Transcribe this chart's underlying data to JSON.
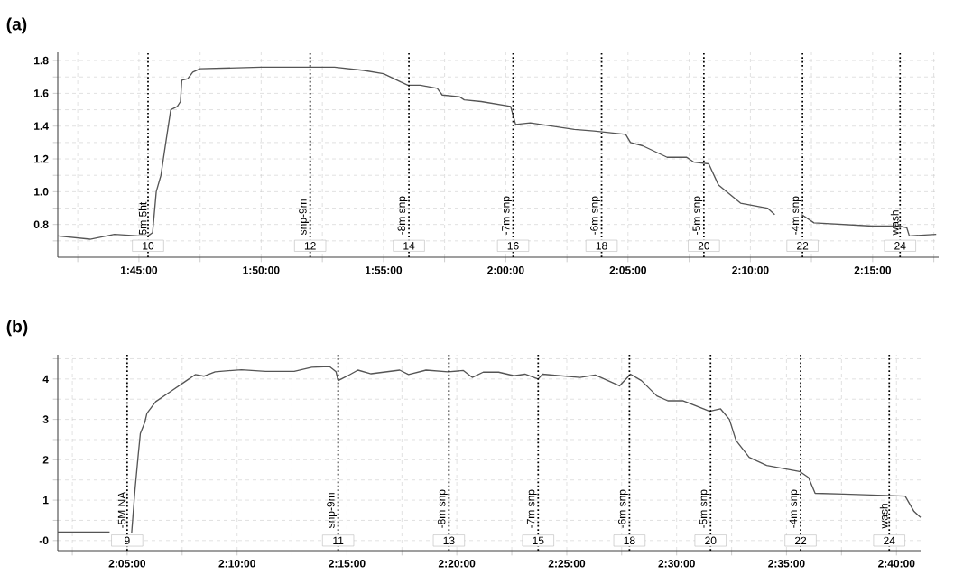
{
  "chart_data": [
    {
      "type": "line",
      "title": "(a)",
      "grid": true,
      "xlim": [
        1.6947,
        2.295
      ],
      "ylim": [
        0.6,
        1.85
      ],
      "xticks": [
        {
          "value": 1.7083,
          "label": null
        },
        {
          "value": 1.75,
          "label": "1:45:00"
        },
        {
          "value": 1.7917,
          "label": null
        },
        {
          "value": 1.8333,
          "label": "1:50:00"
        },
        {
          "value": 1.875,
          "label": null
        },
        {
          "value": 1.9167,
          "label": "1:55:00"
        },
        {
          "value": 1.9583,
          "label": null
        },
        {
          "value": 2.0,
          "label": "2:00:00"
        },
        {
          "value": 2.0417,
          "label": null
        },
        {
          "value": 2.0833,
          "label": "2:05:00"
        },
        {
          "value": 2.125,
          "label": null
        },
        {
          "value": 2.1667,
          "label": "2:10:00"
        },
        {
          "value": 2.2083,
          "label": null
        },
        {
          "value": 2.25,
          "label": "2:15:00"
        },
        {
          "value": 2.2917,
          "label": null
        }
      ],
      "yticks": [
        {
          "value": 0.7,
          "label": null
        },
        {
          "value": 0.8,
          "label": "0.8"
        },
        {
          "value": 0.9,
          "label": null
        },
        {
          "value": 1.0,
          "label": "1.0"
        },
        {
          "value": 1.1,
          "label": null
        },
        {
          "value": 1.2,
          "label": "1.2"
        },
        {
          "value": 1.3,
          "label": null
        },
        {
          "value": 1.4,
          "label": "1.4"
        },
        {
          "value": 1.5,
          "label": null
        },
        {
          "value": 1.6,
          "label": "1.6"
        },
        {
          "value": 1.7,
          "label": null
        },
        {
          "value": 1.8,
          "label": "1.8"
        }
      ],
      "series": [
        {
          "color": "#555555",
          "x": [
            1.6947,
            1.7167,
            1.7333,
            1.75,
            1.7562,
            1.7593,
            1.7618,
            1.765,
            1.7683,
            1.7717,
            1.7762,
            1.7783,
            1.7792,
            1.7833,
            1.7867,
            1.7917,
            1.8333,
            1.8833,
            1.9033,
            1.9167,
            1.9283,
            1.9333,
            1.9417,
            1.9533,
            1.9567,
            1.9683,
            1.9717,
            1.9833,
            2.0033,
            2.0067,
            2.0167,
            2.0467,
            2.06,
            2.0817,
            2.085,
            2.0933,
            2.11,
            2.1233,
            2.1283,
            2.1383,
            2.145,
            2.16,
            2.1783,
            2.1833,
            2.1917,
            2.2017,
            2.21,
            2.25,
            2.2683,
            2.2733,
            2.275,
            2.2933
          ],
          "values": [
            0.73,
            0.71,
            0.74,
            0.73,
            0.73,
            0.75,
            1.0,
            1.1,
            1.3,
            1.5,
            1.52,
            1.55,
            1.68,
            1.69,
            1.73,
            1.75,
            1.76,
            1.76,
            1.74,
            1.72,
            1.67,
            1.65,
            1.65,
            1.63,
            1.59,
            1.58,
            1.56,
            1.55,
            1.52,
            1.41,
            1.42,
            1.38,
            1.37,
            1.35,
            1.3,
            1.28,
            1.21,
            1.21,
            1.18,
            1.17,
            1.04,
            0.93,
            0.9,
            0.86,
            null,
            0.86,
            0.81,
            0.79,
            0.79,
            0.78,
            0.73,
            0.74
          ]
        }
      ],
      "ref_lines": [
        {
          "axis": "x",
          "value": 1.7562,
          "label": "5m 5ht",
          "line_style": "dotted",
          "color": "#000000"
        },
        {
          "axis": "x",
          "value": 1.8667,
          "label": "snp-9m",
          "line_style": "dotted",
          "color": "#000000"
        },
        {
          "axis": "x",
          "value": 1.934,
          "label": "-8m snp",
          "line_style": "dotted",
          "color": "#000000"
        },
        {
          "axis": "x",
          "value": 2.005,
          "label": "-7m snp",
          "line_style": "dotted",
          "color": "#000000"
        },
        {
          "axis": "x",
          "value": 2.0653,
          "label": "-6m snp",
          "line_style": "dotted",
          "color": "#000000"
        },
        {
          "axis": "x",
          "value": 2.135,
          "label": "-5m snp",
          "line_style": "dotted",
          "color": "#000000"
        },
        {
          "axis": "x",
          "value": 2.2022,
          "label": "-4m snp",
          "line_style": "dotted",
          "color": "#000000"
        },
        {
          "axis": "x",
          "value": 2.2687,
          "label": "wash",
          "line_style": "dotted",
          "color": "#000000"
        }
      ],
      "annotations": [
        {
          "text": "10",
          "x": 1.7562,
          "y": 0.67
        },
        {
          "text": "12",
          "x": 1.8667,
          "y": 0.67
        },
        {
          "text": "14",
          "x": 1.934,
          "y": 0.67
        },
        {
          "text": "16",
          "x": 2.005,
          "y": 0.67
        },
        {
          "text": "18",
          "x": 2.0653,
          "y": 0.67
        },
        {
          "text": "20",
          "x": 2.135,
          "y": 0.67
        },
        {
          "text": "22",
          "x": 2.2022,
          "y": 0.67
        },
        {
          "text": "24",
          "x": 2.2687,
          "y": 0.67
        }
      ]
    },
    {
      "type": "line",
      "title": "(b)",
      "grid": true,
      "xlim": [
        2.0307,
        2.685
      ],
      "ylim": [
        -0.25,
        4.6
      ],
      "xticks": [
        {
          "value": 2.0417,
          "label": null
        },
        {
          "value": 2.0833,
          "label": "2:05:00"
        },
        {
          "value": 2.125,
          "label": null
        },
        {
          "value": 2.1667,
          "label": "2:10:00"
        },
        {
          "value": 2.2083,
          "label": null
        },
        {
          "value": 2.25,
          "label": "2:15:00"
        },
        {
          "value": 2.2917,
          "label": null
        },
        {
          "value": 2.3333,
          "label": "2:20:00"
        },
        {
          "value": 2.375,
          "label": null
        },
        {
          "value": 2.4167,
          "label": "2:25:00"
        },
        {
          "value": 2.4583,
          "label": null
        },
        {
          "value": 2.5,
          "label": "2:30:00"
        },
        {
          "value": 2.5417,
          "label": null
        },
        {
          "value": 2.5833,
          "label": "2:35:00"
        },
        {
          "value": 2.625,
          "label": null
        },
        {
          "value": 2.6667,
          "label": "2:40:00"
        }
      ],
      "yticks": [
        {
          "value": 0,
          "label": "-0"
        },
        {
          "value": 0.5,
          "label": null
        },
        1,
        {
          "value": 1.5,
          "label": null
        },
        2,
        {
          "value": 2.5,
          "label": null
        },
        3,
        {
          "value": 3.5,
          "label": null
        },
        4,
        {
          "value": 4.5,
          "label": null
        }
      ],
      "series": [
        {
          "color": "#555555",
          "x": [
            2.0307,
            2.07,
            2.0783,
            2.0867,
            2.0892,
            2.0917,
            2.0933,
            2.0967,
            2.0983,
            2.105,
            2.1167,
            2.1283,
            2.135,
            2.1417,
            2.15,
            2.17,
            2.1883,
            2.21,
            2.2233,
            2.2367,
            2.2417,
            2.2433,
            2.25,
            2.2583,
            2.2683,
            2.29,
            2.2967,
            2.31,
            2.3267,
            2.3383,
            2.345,
            2.3533,
            2.365,
            2.3767,
            2.385,
            2.395,
            2.3983,
            2.4267,
            2.4383,
            2.4567,
            2.465,
            2.4733,
            2.485,
            2.4933,
            2.505,
            2.525,
            2.5333,
            2.54,
            2.545,
            2.555,
            2.5683,
            2.5933,
            2.6,
            2.605,
            2.6267,
            2.6733,
            2.68,
            2.685
          ],
          "values": [
            0.21,
            0.21,
            null,
            0.18,
            1.24,
            2.12,
            2.65,
            2.93,
            3.15,
            3.44,
            3.7,
            3.96,
            4.11,
            4.07,
            4.18,
            4.23,
            4.19,
            4.19,
            4.29,
            4.31,
            4.18,
            3.96,
            4.07,
            4.22,
            4.13,
            4.22,
            4.11,
            4.22,
            4.18,
            4.21,
            4.04,
            4.17,
            4.17,
            4.08,
            4.12,
            4.0,
            4.12,
            4.04,
            4.1,
            3.83,
            4.12,
            3.96,
            3.58,
            3.46,
            3.46,
            3.2,
            3.26,
            3.0,
            2.48,
            2.06,
            1.86,
            1.71,
            1.56,
            1.17,
            1.15,
            1.1,
            0.72,
            0.57
          ]
        }
      ],
      "ref_lines": [
        {
          "axis": "x",
          "value": 2.0833,
          "label": "-5M NA",
          "line_style": "dotted",
          "color": "#000000"
        },
        {
          "axis": "x",
          "value": 2.2433,
          "label": "snp-9m",
          "line_style": "dotted",
          "color": "#000000"
        },
        {
          "axis": "x",
          "value": 2.3273,
          "label": "-8m snp",
          "line_style": "dotted",
          "color": "#000000"
        },
        {
          "axis": "x",
          "value": 2.395,
          "label": "-7m snp",
          "line_style": "dotted",
          "color": "#000000"
        },
        {
          "axis": "x",
          "value": 2.4642,
          "label": "-6m snp",
          "line_style": "dotted",
          "color": "#000000"
        },
        {
          "axis": "x",
          "value": 2.5257,
          "label": "-5m snp",
          "line_style": "dotted",
          "color": "#000000"
        },
        {
          "axis": "x",
          "value": 2.594,
          "label": "-4m snp",
          "line_style": "dotted",
          "color": "#000000"
        },
        {
          "axis": "x",
          "value": 2.6612,
          "label": "wash",
          "line_style": "dotted",
          "color": "#000000"
        }
      ],
      "annotations": [
        {
          "text": "9",
          "x": 2.0833,
          "y": 0
        },
        {
          "text": "11",
          "x": 2.2433,
          "y": 0
        },
        {
          "text": "13",
          "x": 2.3273,
          "y": 0
        },
        {
          "text": "15",
          "x": 2.395,
          "y": 0
        },
        {
          "text": "18",
          "x": 2.4642,
          "y": 0
        },
        {
          "text": "20",
          "x": 2.5257,
          "y": 0
        },
        {
          "text": "22",
          "x": 2.594,
          "y": 0
        },
        {
          "text": "24",
          "x": 2.6612,
          "y": 0
        }
      ]
    }
  ]
}
